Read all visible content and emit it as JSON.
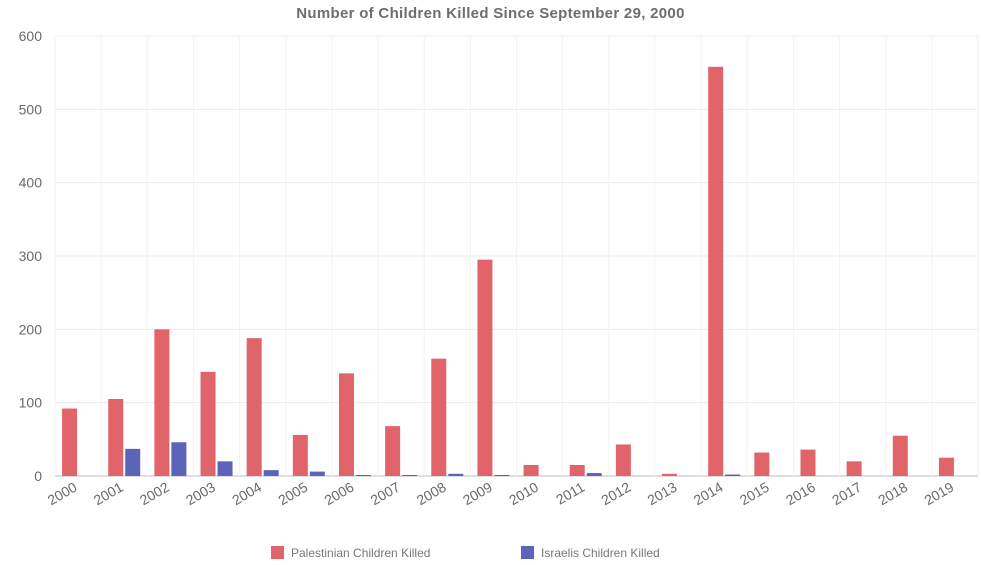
{
  "chart_data": {
    "type": "bar",
    "title": "Number of Children Killed Since September 29, 2000",
    "xlabel": "",
    "ylabel": "",
    "ylim": [
      0,
      600
    ],
    "yticks": [
      0,
      100,
      200,
      300,
      400,
      500,
      600
    ],
    "grid": true,
    "legend_position": "bottom",
    "categories": [
      "2000",
      "2001",
      "2002",
      "2003",
      "2004",
      "2005",
      "2006",
      "2007",
      "2008",
      "2009",
      "2010",
      "2011",
      "2012",
      "2013",
      "2014",
      "2015",
      "2016",
      "2017",
      "2018",
      "2019"
    ],
    "series": [
      {
        "name": "Palestinian Children Killed",
        "color": "#e2646b",
        "values": [
          92,
          105,
          200,
          142,
          188,
          56,
          140,
          68,
          160,
          295,
          15,
          15,
          43,
          3,
          558,
          32,
          36,
          20,
          55,
          25
        ]
      },
      {
        "name": "Israelis Children Killed",
        "color": "#5b64b8",
        "values": [
          0,
          37,
          46,
          20,
          8,
          6,
          1,
          1,
          3,
          1,
          0,
          4,
          0,
          0,
          2,
          0,
          0,
          0,
          0,
          0
        ]
      }
    ]
  }
}
